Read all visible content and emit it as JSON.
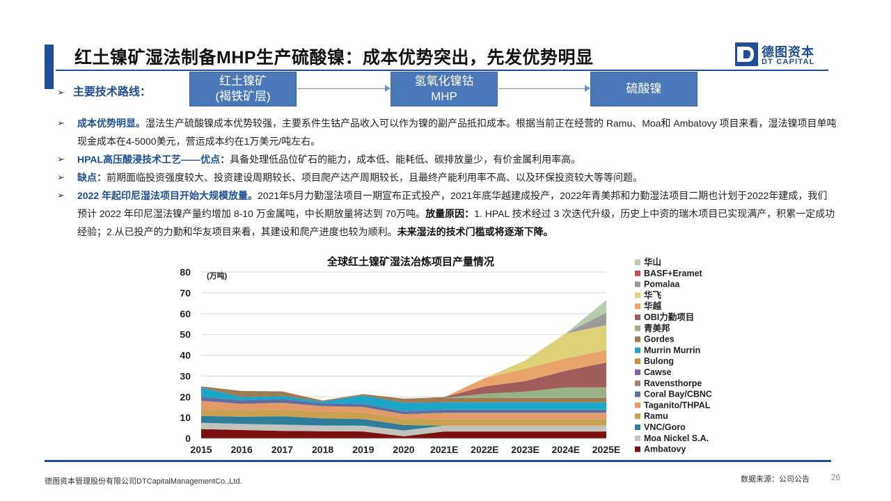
{
  "title": "红土镍矿湿法制备MHP生产硫酸镍：成本优势突出，先发优势明显",
  "logo": {
    "cn": "德图资本",
    "en": "DT CAPITAL"
  },
  "route": {
    "label": "主要技术路线：",
    "boxes": [
      {
        "line1": "红土镍矿",
        "line2": "(褐铁矿层)"
      },
      {
        "line1": "氢氧化镍钴",
        "line2": "MHP"
      },
      {
        "line1": "硫酸镍",
        "line2": ""
      }
    ]
  },
  "bullets": [
    {
      "lead": "成本优势明显。",
      "text": "湿法生产硫酸镍成本优势较强，主要系件生钴产品收入可以作为镍的副产品抵扣成本。根据当前正在经营的 Ramu、Moa和 Ambatovy 项目来看，湿法镍项目单吨现金成本在4-5000美元，营运成本约在1万美元/吨左右。"
    },
    {
      "lead": "HPAL高压酸浸技术工艺——优点：",
      "text": "具备处理低品位矿石的能力，成本低、能耗低、碳排放量少，有价金属利用率高。"
    },
    {
      "lead": "缺点：",
      "text": "前期面临投资强度较大、投资建设周期较长、项目爬产达产周期较长，且最终产能利用率不高、以及环保投资较大等等问题。"
    },
    {
      "lead": "2022 年起印尼湿法项目开始大规模放量。",
      "text": "2021年5月力勤湿法项目一期宣布正式投产，2021年底华越建成投产，2022年青美邦和力勤湿法项目二期也计划于2022年建成，我们预计 2022 年印尼湿法镍产量约增加 8-10 万金属吨，中长期放量将达到 70万吨。",
      "bold_lead": "放量原因：",
      "text2": "1. HPAL 技术经过 3 次迭代升级，历史上中资的瑞木项目已实现满产，积累一定成功经验；2.从已投产的力勤和华友项目来看，其建设和爬产进度也较为顺利。",
      "bold_end": "未来湿法的技术门槛或将逐渐下降。"
    }
  ],
  "chart_data": {
    "type": "area",
    "title": "全球红土镍矿湿法冶炼项目产量情况",
    "unit": "(万吨)",
    "ylim": [
      0,
      80
    ],
    "yticks": [
      0,
      10,
      20,
      30,
      40,
      50,
      60,
      70,
      80
    ],
    "categories": [
      "2015",
      "2016",
      "2017",
      "2018",
      "2019",
      "2020",
      "2021E",
      "2022E",
      "2023E",
      "2024E",
      "2025E"
    ],
    "grid": true,
    "legend_position": "right",
    "series": [
      {
        "name": "Ambatovy",
        "color": "#7a1010",
        "values": [
          4.5,
          4.0,
          3.6,
          3.4,
          3.3,
          1.0,
          3.3,
          3.3,
          3.3,
          3.3,
          3.3
        ]
      },
      {
        "name": "Moa Nickel S.A.",
        "color": "#c3c3bd",
        "values": [
          3.0,
          3.0,
          3.0,
          2.8,
          2.8,
          2.8,
          2.8,
          2.8,
          2.8,
          2.8,
          2.8
        ]
      },
      {
        "name": "VNC/Goro",
        "color": "#2e7d9a",
        "values": [
          3.3,
          3.4,
          4.0,
          3.4,
          3.2,
          2.6,
          0.0,
          0.0,
          0.0,
          0.0,
          0.0
        ]
      },
      {
        "name": "Ramu",
        "color": "#c9a050",
        "values": [
          3.3,
          3.2,
          3.3,
          3.3,
          3.2,
          3.0,
          3.2,
          3.2,
          3.2,
          3.2,
          3.2
        ]
      },
      {
        "name": "Taganito/THPAL",
        "color": "#e49a68",
        "values": [
          4.0,
          3.0,
          3.2,
          2.6,
          2.6,
          2.2,
          3.0,
          3.0,
          3.0,
          3.0,
          3.0
        ]
      },
      {
        "name": "Coral Bay/CBNC",
        "color": "#5d6fa3",
        "values": [
          1.8,
          1.7,
          1.8,
          1.5,
          1.5,
          1.5,
          1.5,
          1.5,
          1.5,
          1.5,
          1.5
        ]
      },
      {
        "name": "Ravensthorpe",
        "color": "#9c8473",
        "values": [
          0.0,
          0.0,
          0.0,
          0.0,
          0.0,
          0.0,
          0.0,
          0.0,
          0.0,
          0.0,
          0.0
        ]
      },
      {
        "name": "Cawse",
        "color": "#7e63a8",
        "values": [
          0.0,
          0.0,
          0.0,
          0.0,
          0.0,
          0.0,
          0.0,
          0.0,
          0.0,
          0.0,
          0.0
        ]
      },
      {
        "name": "Bulong",
        "color": "#c98f3c",
        "values": [
          0.0,
          0.0,
          0.0,
          0.0,
          0.0,
          0.0,
          0.0,
          0.0,
          0.0,
          0.0,
          0.0
        ]
      },
      {
        "name": "Murrin Murrin",
        "color": "#1ba6c8",
        "values": [
          4.6,
          1.5,
          1.5,
          0.7,
          4.0,
          4.0,
          3.5,
          3.5,
          3.5,
          3.5,
          3.5
        ]
      },
      {
        "name": "Gordes",
        "color": "#9e7a55",
        "values": [
          0.5,
          3.0,
          2.2,
          0.5,
          0.7,
          2.0,
          2.2,
          2.2,
          2.2,
          2.2,
          2.2
        ]
      },
      {
        "name": "青美邦",
        "color": "#98b285",
        "values": [
          0.0,
          0.0,
          0.0,
          0.0,
          0.0,
          0.0,
          0.0,
          2.0,
          3.0,
          5.0,
          5.0
        ]
      },
      {
        "name": "OBI力勤项目",
        "color": "#a15c5c",
        "values": [
          0.0,
          0.0,
          0.0,
          0.0,
          0.0,
          0.0,
          0.3,
          3.5,
          5.0,
          8.0,
          12.0
        ]
      },
      {
        "name": "华越",
        "color": "#e9a46c",
        "values": [
          0.0,
          0.0,
          0.0,
          0.0,
          0.0,
          0.0,
          0.0,
          4.0,
          6.0,
          6.0,
          6.0
        ]
      },
      {
        "name": "华飞",
        "color": "#ded279",
        "values": [
          0.0,
          0.0,
          0.0,
          0.0,
          0.0,
          0.0,
          0.0,
          0.0,
          4.0,
          12.0,
          12.0
        ]
      },
      {
        "name": "Pomalaa",
        "color": "#9b9b9b",
        "values": [
          0.0,
          0.0,
          0.0,
          0.0,
          0.0,
          0.0,
          0.0,
          0.0,
          0.0,
          0.0,
          6.0
        ]
      },
      {
        "name": "BASF+Eramet",
        "color": "#c24e4e",
        "values": [
          0.0,
          0.0,
          0.0,
          0.0,
          0.0,
          0.0,
          0.0,
          0.0,
          0.0,
          0.0,
          0.0
        ]
      },
      {
        "name": "华山",
        "color": "#b7ccaa",
        "values": [
          0.0,
          0.0,
          0.0,
          0.0,
          0.0,
          0.0,
          0.0,
          0.0,
          0.0,
          0.0,
          6.0
        ]
      }
    ]
  },
  "footer": {
    "company": "德图资本管理股份有限公司DTCapitalManagementCo.,Ltd.",
    "source": "数据来源：公司公告",
    "page": "26"
  }
}
